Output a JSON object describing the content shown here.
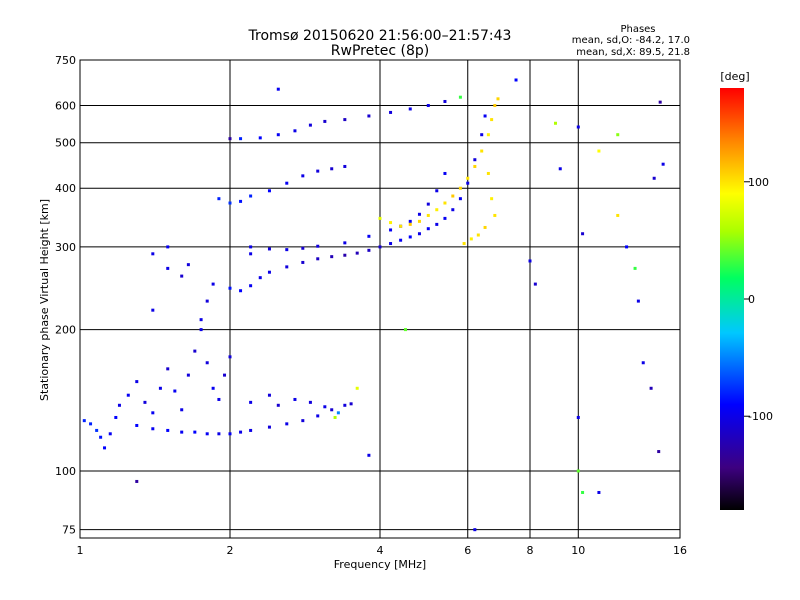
{
  "chart_data": {
    "type": "scatter",
    "title": "Tromsø 20150620 21:56:00–21:57:43",
    "subtitle": "RwPretec (8p)",
    "xlabel": "Frequency [MHz]",
    "ylabel": "Stationary phase Virtual Height [km]",
    "x_scale": "log",
    "y_scale": "log",
    "xlim": [
      1,
      16
    ],
    "ylim": [
      72,
      750
    ],
    "x_ticks": [
      1,
      2,
      4,
      6,
      8,
      10,
      16
    ],
    "y_ticks": [
      75,
      100,
      200,
      300,
      400,
      500,
      600,
      750
    ],
    "x_tick_labels": [
      "1",
      "2",
      "4",
      "6",
      "8",
      "10",
      "16"
    ],
    "y_tick_labels": [
      "75",
      "100",
      "200",
      "300",
      "400",
      "500",
      "600",
      "750"
    ],
    "grid": true,
    "phase_stats": {
      "heading": "Phases",
      "line_o": "mean, sd,O: -84.2, 17.0",
      "line_x": "mean, sd,X:  89.5, 21.8"
    },
    "colorbar": {
      "label": "[deg]",
      "min": -180,
      "max": 180,
      "ticks": [
        100,
        0,
        -100
      ],
      "tick_labels": [
        "100",
        "0",
        "-100"
      ]
    },
    "series": [
      {
        "points": [
          [
            1.02,
            128,
            -80
          ],
          [
            1.05,
            126,
            -80
          ],
          [
            1.08,
            122,
            -75
          ],
          [
            1.1,
            118,
            -85
          ],
          [
            1.12,
            112,
            -90
          ],
          [
            1.15,
            120,
            -95
          ],
          [
            1.18,
            130,
            -90
          ],
          [
            1.2,
            138,
            -100
          ],
          [
            1.25,
            145,
            -95
          ],
          [
            1.3,
            155,
            -100
          ],
          [
            1.35,
            140,
            -105
          ],
          [
            1.4,
            133,
            -95
          ],
          [
            1.45,
            150,
            -100
          ],
          [
            1.5,
            165,
            -110
          ],
          [
            1.55,
            148,
            -95
          ],
          [
            1.6,
            135,
            -100
          ],
          [
            1.65,
            160,
            -105
          ],
          [
            1.7,
            180,
            -110
          ],
          [
            1.75,
            200,
            -100
          ],
          [
            1.8,
            170,
            -105
          ],
          [
            1.85,
            150,
            -95
          ],
          [
            1.9,
            142,
            -100
          ],
          [
            1.95,
            160,
            -110
          ],
          [
            2.0,
            175,
            -105
          ],
          [
            1.3,
            125,
            -90
          ],
          [
            1.4,
            123,
            -95
          ],
          [
            1.5,
            122,
            -90
          ],
          [
            1.6,
            121,
            -95
          ],
          [
            1.7,
            121,
            -90
          ],
          [
            1.8,
            120,
            -95
          ],
          [
            1.9,
            120,
            -100
          ],
          [
            2.0,
            120,
            -95
          ],
          [
            2.1,
            121,
            -100
          ],
          [
            2.2,
            122,
            -100
          ],
          [
            2.4,
            124,
            -105
          ],
          [
            2.6,
            126,
            -100
          ],
          [
            2.8,
            128,
            -105
          ],
          [
            3.0,
            131,
            -100
          ],
          [
            3.2,
            135,
            -110
          ],
          [
            3.4,
            138,
            -105
          ],
          [
            2.2,
            140,
            -100
          ],
          [
            2.4,
            145,
            -105
          ],
          [
            2.5,
            138,
            -110
          ],
          [
            2.7,
            142,
            -100
          ],
          [
            2.9,
            140,
            -105
          ],
          [
            3.1,
            137,
            -100
          ],
          [
            3.3,
            133,
            -50
          ],
          [
            3.25,
            130,
            60
          ],
          [
            3.5,
            139,
            -110
          ],
          [
            1.75,
            210,
            -100
          ],
          [
            1.8,
            230,
            -105
          ],
          [
            1.85,
            250,
            -100
          ],
          [
            1.6,
            260,
            -110
          ],
          [
            1.65,
            275,
            -105
          ],
          [
            1.5,
            270,
            -100
          ],
          [
            1.4,
            220,
            -100
          ],
          [
            2.0,
            245,
            -85
          ],
          [
            2.1,
            242,
            -90
          ],
          [
            2.2,
            248,
            -95
          ],
          [
            2.3,
            258,
            -100
          ],
          [
            2.4,
            265,
            -100
          ],
          [
            2.6,
            272,
            -105
          ],
          [
            2.8,
            278,
            -110
          ],
          [
            3.0,
            283,
            -115
          ],
          [
            3.2,
            286,
            -120
          ],
          [
            3.4,
            288,
            -125
          ],
          [
            3.6,
            291,
            -120
          ],
          [
            3.8,
            295,
            -115
          ],
          [
            4.0,
            300,
            -110
          ],
          [
            4.2,
            305,
            -100
          ],
          [
            4.4,
            310,
            -95
          ],
          [
            4.6,
            315,
            -90
          ],
          [
            4.8,
            320,
            -100
          ],
          [
            5.0,
            328,
            -95
          ],
          [
            5.2,
            335,
            -100
          ],
          [
            5.4,
            345,
            -95
          ],
          [
            5.6,
            360,
            -100
          ],
          [
            5.8,
            380,
            -95
          ],
          [
            6.0,
            410,
            -100
          ],
          [
            6.2,
            460,
            -105
          ],
          [
            6.4,
            520,
            -100
          ],
          [
            6.5,
            570,
            -95
          ],
          [
            2.2,
            300,
            -100
          ],
          [
            2.4,
            297,
            -105
          ],
          [
            2.6,
            296,
            -100
          ],
          [
            2.8,
            298,
            -110
          ],
          [
            3.0,
            301,
            -105
          ],
          [
            3.4,
            306,
            -100
          ],
          [
            3.8,
            316,
            -95
          ],
          [
            4.2,
            326,
            -95
          ],
          [
            4.4,
            332,
            -100
          ],
          [
            4.6,
            340,
            -95
          ],
          [
            4.8,
            352,
            -100
          ],
          [
            5.0,
            370,
            -105
          ],
          [
            5.2,
            395,
            -100
          ],
          [
            5.4,
            430,
            -95
          ],
          [
            1.9,
            380,
            -80
          ],
          [
            2.0,
            372,
            -75
          ],
          [
            2.1,
            375,
            -85
          ],
          [
            2.2,
            385,
            -80
          ],
          [
            2.4,
            395,
            -90
          ],
          [
            2.6,
            410,
            -95
          ],
          [
            2.8,
            425,
            -100
          ],
          [
            3.0,
            435,
            -105
          ],
          [
            3.2,
            440,
            -110
          ],
          [
            3.4,
            445,
            -105
          ],
          [
            2.1,
            510,
            -80
          ],
          [
            2.3,
            512,
            -90
          ],
          [
            2.5,
            520,
            -95
          ],
          [
            2.7,
            530,
            -100
          ],
          [
            2.9,
            545,
            -105
          ],
          [
            3.1,
            555,
            -110
          ],
          [
            3.4,
            560,
            -115
          ],
          [
            3.8,
            570,
            -110
          ],
          [
            4.2,
            580,
            -105
          ],
          [
            4.6,
            590,
            -100
          ],
          [
            5.0,
            600,
            -100
          ],
          [
            5.4,
            612,
            -105
          ],
          [
            5.8,
            625,
            30
          ],
          [
            2.5,
            650,
            -95
          ],
          [
            4.0,
            345,
            80
          ],
          [
            4.2,
            338,
            95
          ],
          [
            4.4,
            332,
            100
          ],
          [
            4.6,
            335,
            110
          ],
          [
            4.8,
            340,
            105
          ],
          [
            5.0,
            350,
            100
          ],
          [
            5.2,
            360,
            95
          ],
          [
            5.4,
            372,
            100
          ],
          [
            5.6,
            385,
            110
          ],
          [
            5.8,
            400,
            105
          ],
          [
            6.0,
            420,
            100
          ],
          [
            6.2,
            445,
            105
          ],
          [
            6.4,
            480,
            100
          ],
          [
            6.6,
            520,
            95
          ],
          [
            6.7,
            560,
            100
          ],
          [
            6.8,
            600,
            110
          ],
          [
            6.9,
            620,
            105
          ],
          [
            6.6,
            430,
            100
          ],
          [
            6.7,
            380,
            95
          ],
          [
            6.8,
            350,
            100
          ],
          [
            6.5,
            330,
            105
          ],
          [
            6.3,
            318,
            100
          ],
          [
            6.1,
            312,
            95
          ],
          [
            5.9,
            305,
            100
          ],
          [
            2.0,
            510,
            -130
          ],
          [
            1.3,
            95,
            -130
          ],
          [
            1.5,
            300,
            -95
          ],
          [
            1.4,
            290,
            -100
          ],
          [
            3.6,
            150,
            80
          ],
          [
            2.2,
            290,
            -100
          ],
          [
            7.5,
            680,
            -90
          ],
          [
            8.0,
            280,
            -100
          ],
          [
            8.2,
            250,
            -110
          ],
          [
            9.0,
            550,
            60
          ],
          [
            9.2,
            440,
            -100
          ],
          [
            10.0,
            540,
            -100
          ],
          [
            10.2,
            320,
            -110
          ],
          [
            10.0,
            130,
            -100
          ],
          [
            10.0,
            100,
            40
          ],
          [
            10.2,
            90,
            30
          ],
          [
            11.0,
            90,
            -100
          ],
          [
            12.0,
            520,
            50
          ],
          [
            12.5,
            300,
            -90
          ],
          [
            13.0,
            270,
            30
          ],
          [
            13.2,
            230,
            -100
          ],
          [
            13.5,
            170,
            -100
          ],
          [
            14.0,
            150,
            -120
          ],
          [
            14.5,
            110,
            -130
          ],
          [
            14.2,
            420,
            -110
          ],
          [
            14.8,
            450,
            -100
          ],
          [
            14.6,
            610,
            -130
          ],
          [
            6.2,
            75,
            -100
          ],
          [
            3.8,
            108,
            -100
          ],
          [
            4.5,
            200,
            40
          ],
          [
            12.0,
            350,
            100
          ],
          [
            11.0,
            480,
            90
          ]
        ]
      }
    ]
  }
}
